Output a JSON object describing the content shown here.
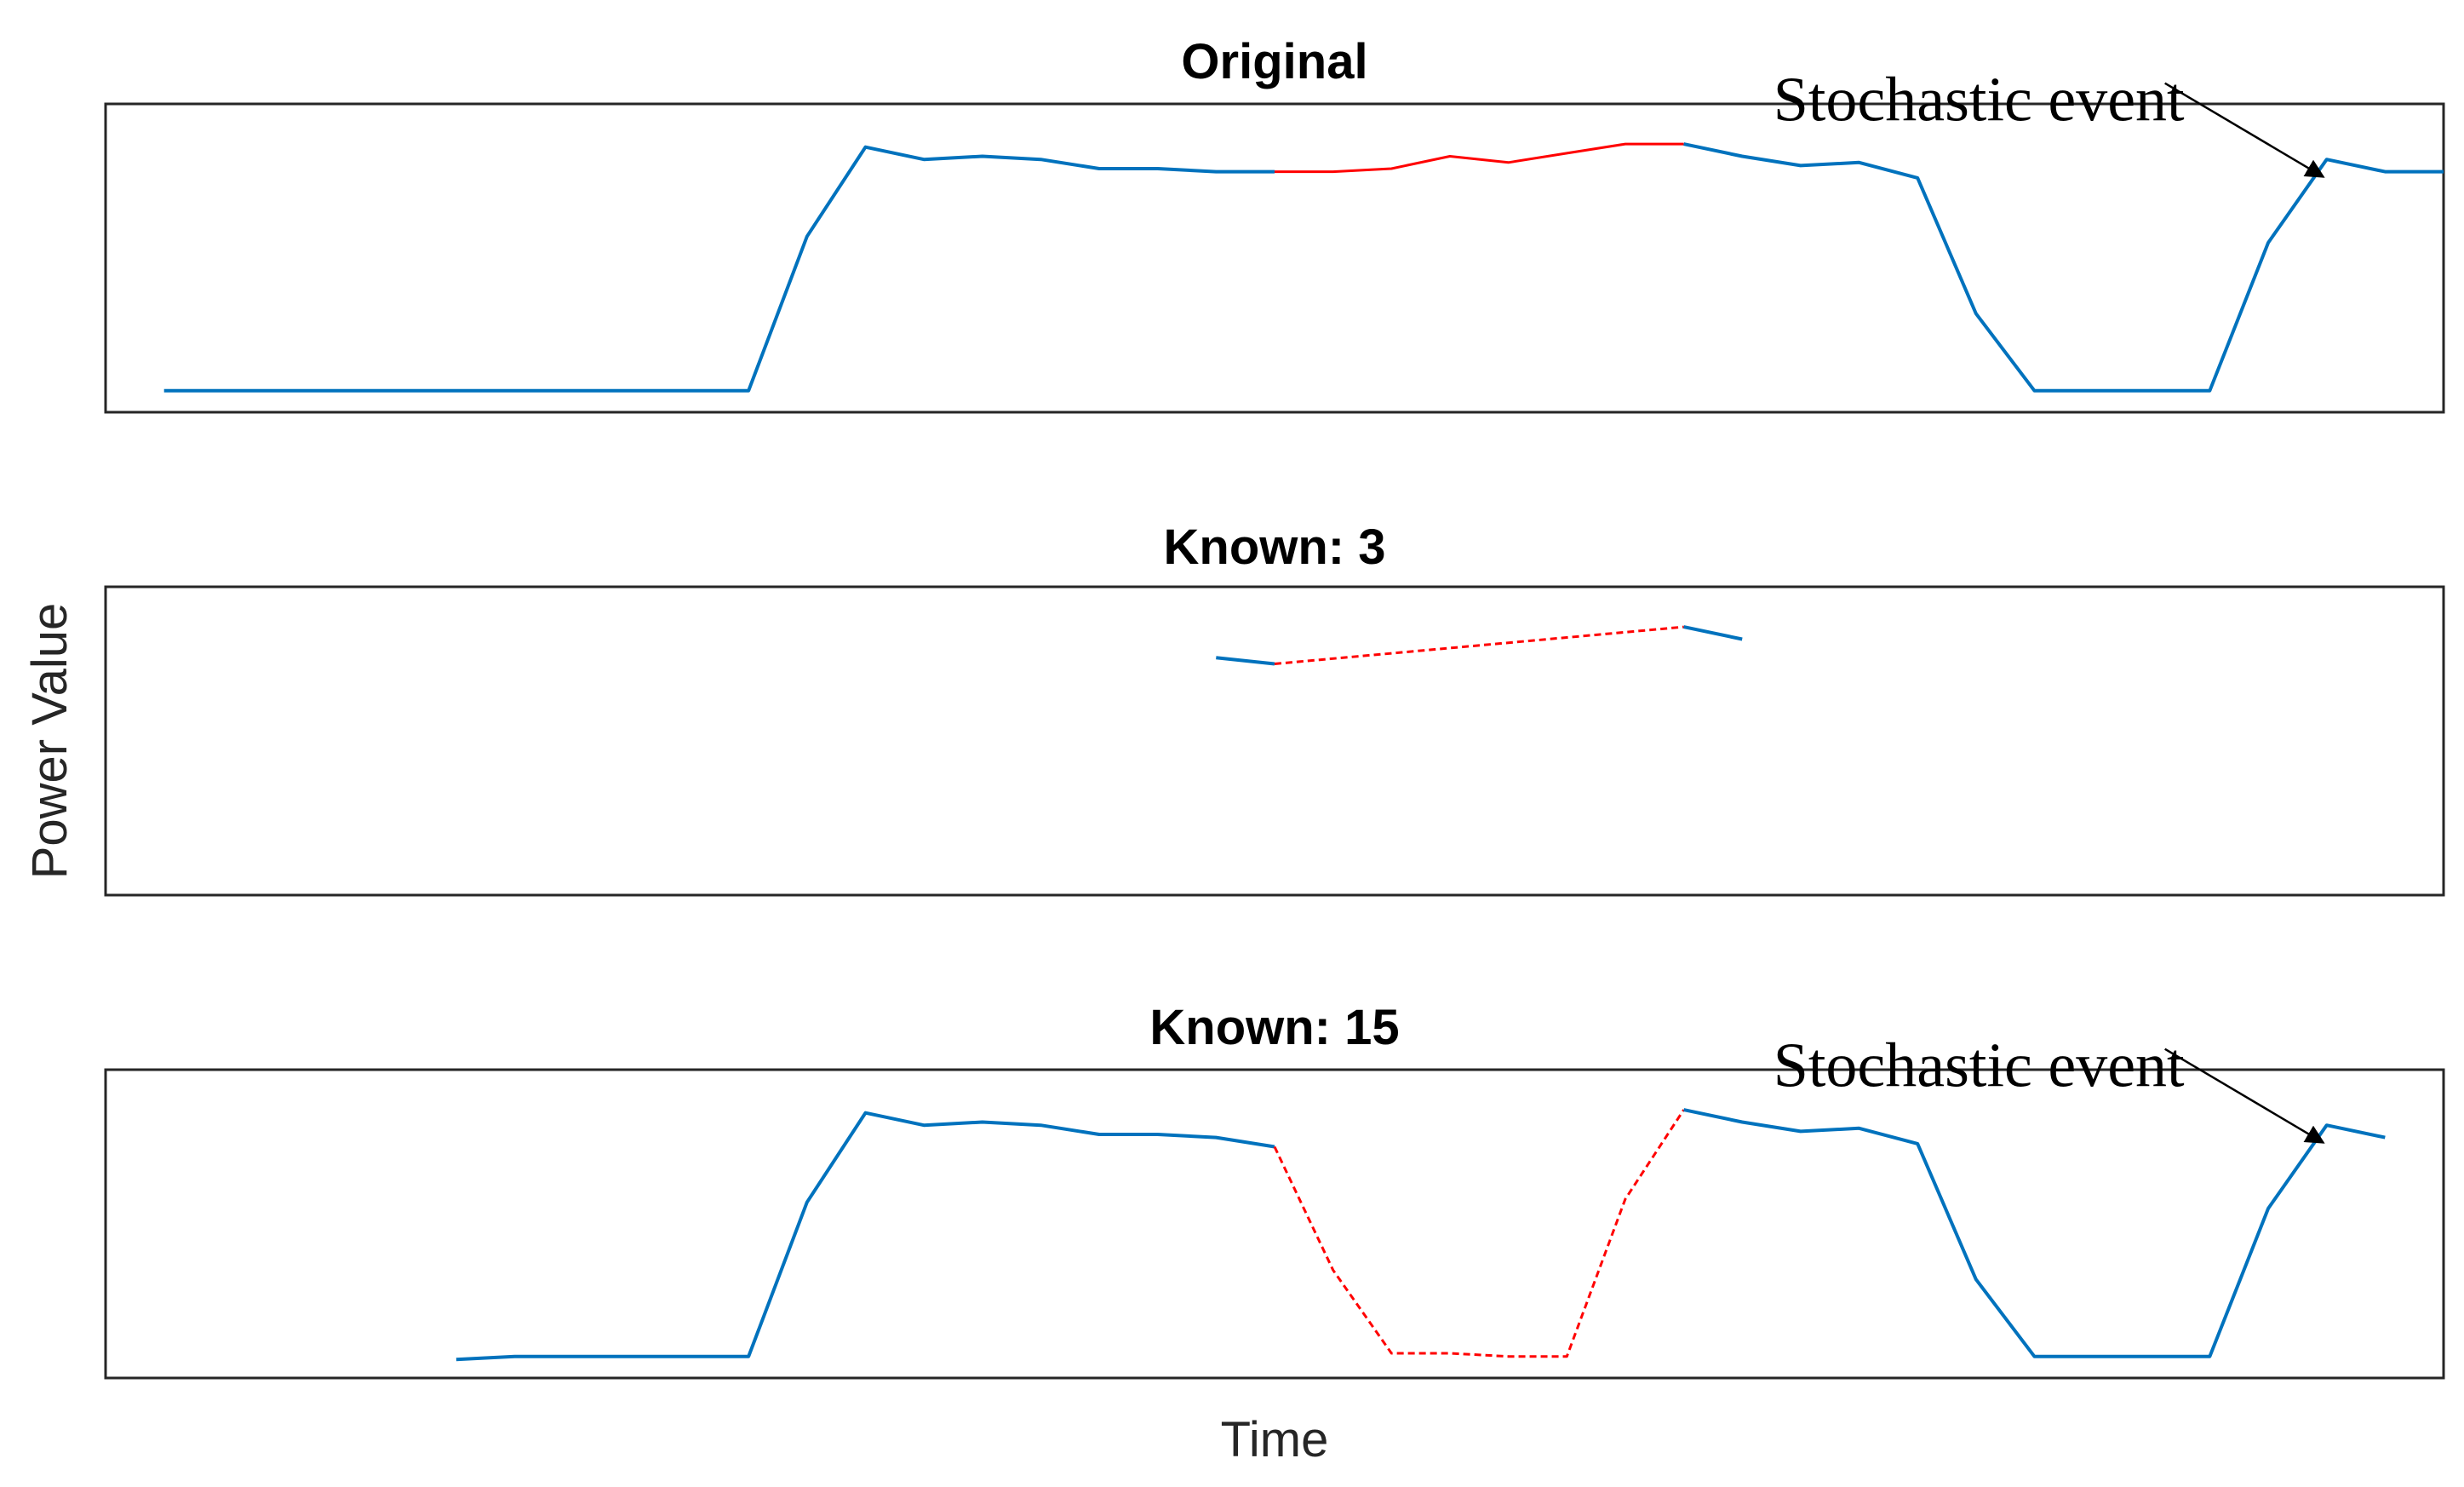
{
  "colors": {
    "known": "#0072BD",
    "missing": "#FF0000",
    "frame": "#262626",
    "text": "#000000"
  },
  "figure": {
    "ylabel": "Power Value",
    "xlabel": "Time"
  },
  "chart_data": [
    {
      "type": "line",
      "title": "Original",
      "xlabel": "",
      "ylabel": "",
      "xlim": [
        0,
        40
      ],
      "ylim": [
        0,
        1
      ],
      "grid": false,
      "ticks": false,
      "series": [
        {
          "role": "known",
          "style": "solid",
          "x": [
            1,
            2,
            3,
            4,
            5,
            6,
            7,
            8,
            9,
            10,
            11,
            12,
            13,
            14,
            15,
            16,
            17,
            18,
            19,
            20
          ],
          "y": [
            0.07,
            0.07,
            0.07,
            0.07,
            0.07,
            0.07,
            0.07,
            0.07,
            0.07,
            0.07,
            0.07,
            0.57,
            0.86,
            0.82,
            0.83,
            0.82,
            0.79,
            0.79,
            0.78,
            0.78
          ]
        },
        {
          "role": "missing",
          "style": "solid",
          "x": [
            20,
            21,
            22,
            23,
            24,
            25,
            26,
            27
          ],
          "y": [
            0.78,
            0.78,
            0.79,
            0.83,
            0.81,
            0.84,
            0.87,
            0.87
          ]
        },
        {
          "role": "known",
          "style": "solid",
          "x": [
            27,
            28,
            29,
            30,
            31,
            32,
            33,
            34,
            35,
            36,
            37,
            38,
            39,
            40
          ],
          "y": [
            0.87,
            0.83,
            0.8,
            0.81,
            0.76,
            0.32,
            0.07,
            0.07,
            0.07,
            0.07,
            0.55,
            0.82,
            0.78,
            0.78
          ]
        }
      ],
      "annotations": [
        {
          "text": "Stochastic event",
          "point": [
            38.0,
            0.78
          ]
        }
      ]
    },
    {
      "type": "line",
      "title": "Known: 3",
      "xlabel": "",
      "ylabel": "",
      "xlim": [
        0,
        40
      ],
      "ylim": [
        0,
        1
      ],
      "grid": false,
      "ticks": false,
      "series": [
        {
          "role": "known",
          "style": "solid",
          "x": [
            19,
            20
          ],
          "y": [
            0.77,
            0.75
          ]
        },
        {
          "role": "missing",
          "style": "dashed",
          "x": [
            20,
            27
          ],
          "y": [
            0.75,
            0.87
          ]
        },
        {
          "role": "known",
          "style": "solid",
          "x": [
            27,
            28
          ],
          "y": [
            0.87,
            0.83
          ]
        }
      ],
      "annotations": []
    },
    {
      "type": "line",
      "title": "Known: 15",
      "xlabel": "",
      "ylabel": "",
      "xlim": [
        0,
        40
      ],
      "ylim": [
        0,
        1
      ],
      "grid": false,
      "ticks": false,
      "series": [
        {
          "role": "known",
          "style": "solid",
          "x": [
            6,
            7,
            8,
            9,
            10,
            11,
            12,
            13,
            14,
            15,
            16,
            17,
            18,
            19,
            20
          ],
          "y": [
            0.06,
            0.07,
            0.07,
            0.07,
            0.07,
            0.07,
            0.57,
            0.86,
            0.82,
            0.83,
            0.82,
            0.79,
            0.79,
            0.78,
            0.75
          ]
        },
        {
          "role": "missing",
          "style": "dashed",
          "x": [
            20,
            21,
            22,
            23,
            24,
            25,
            26,
            27
          ],
          "y": [
            0.75,
            0.35,
            0.08,
            0.08,
            0.07,
            0.07,
            0.58,
            0.87
          ]
        },
        {
          "role": "known",
          "style": "solid",
          "x": [
            27,
            28,
            29,
            30,
            31,
            32,
            33,
            34,
            35,
            36,
            37,
            38,
            39
          ],
          "y": [
            0.87,
            0.83,
            0.8,
            0.81,
            0.76,
            0.32,
            0.07,
            0.07,
            0.07,
            0.07,
            0.55,
            0.82,
            0.78
          ]
        }
      ],
      "annotations": [
        {
          "text": "Stochastic event",
          "point": [
            38.0,
            0.78
          ]
        }
      ]
    }
  ]
}
